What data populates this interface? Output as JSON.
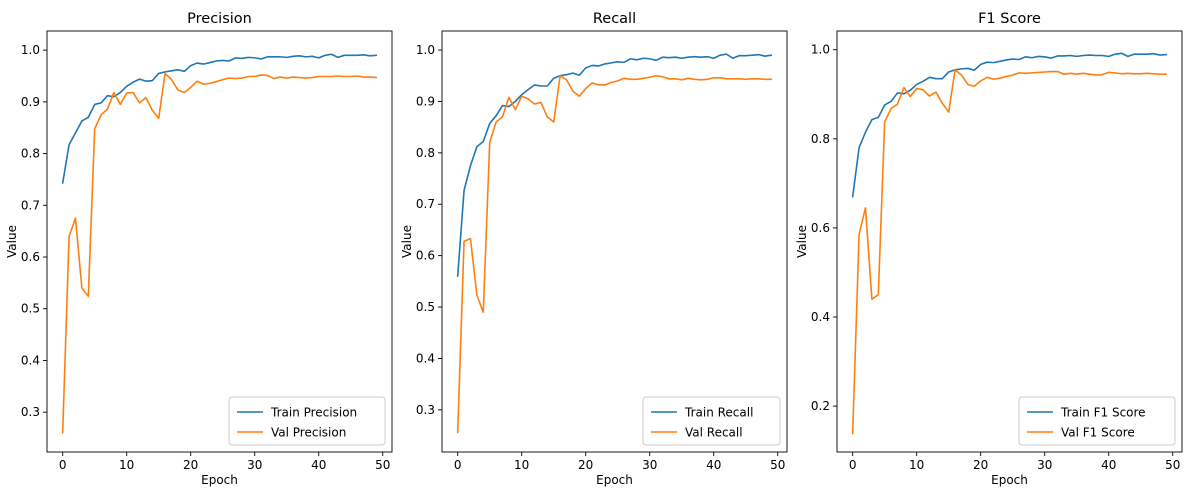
{
  "chart_data": [
    {
      "type": "line",
      "title": "Precision",
      "xlabel": "Epoch",
      "ylabel": "Value",
      "xlim": [
        -2.45,
        51.45
      ],
      "ylim": [
        0.223,
        1.037
      ],
      "xticks": [
        0,
        10,
        20,
        30,
        40,
        50
      ],
      "yticks": [
        0.3,
        0.4,
        0.5,
        0.6,
        0.7,
        0.8,
        0.9,
        1.0
      ],
      "ytick_labels": [
        "0.3",
        "0.4",
        "0.5",
        "0.6",
        "0.7",
        "0.8",
        "0.9",
        "1.0"
      ],
      "legend_position": "lower-right",
      "grid": false,
      "series": [
        {
          "name": "Train Precision",
          "color": "#1f77b4",
          "values": [
            0.743,
            0.817,
            0.84,
            0.863,
            0.87,
            0.895,
            0.898,
            0.912,
            0.91,
            0.918,
            0.93,
            0.938,
            0.944,
            0.94,
            0.941,
            0.955,
            0.958,
            0.96,
            0.962,
            0.959,
            0.97,
            0.975,
            0.973,
            0.976,
            0.979,
            0.98,
            0.979,
            0.985,
            0.984,
            0.986,
            0.985,
            0.983,
            0.987,
            0.987,
            0.987,
            0.986,
            0.988,
            0.989,
            0.987,
            0.988,
            0.985,
            0.99,
            0.992,
            0.986,
            0.99,
            0.99,
            0.99,
            0.991,
            0.989,
            0.99
          ]
        },
        {
          "name": "Val Precision",
          "color": "#ff7f0e",
          "values": [
            0.26,
            0.64,
            0.675,
            0.54,
            0.524,
            0.848,
            0.875,
            0.886,
            0.918,
            0.895,
            0.917,
            0.918,
            0.898,
            0.908,
            0.884,
            0.868,
            0.955,
            0.943,
            0.923,
            0.918,
            0.928,
            0.94,
            0.934,
            0.936,
            0.939,
            0.943,
            0.946,
            0.945,
            0.946,
            0.949,
            0.949,
            0.952,
            0.951,
            0.945,
            0.948,
            0.946,
            0.948,
            0.947,
            0.946,
            0.947,
            0.949,
            0.949,
            0.949,
            0.95,
            0.949,
            0.949,
            0.95,
            0.948,
            0.948,
            0.947
          ]
        }
      ]
    },
    {
      "type": "line",
      "title": "Recall",
      "xlabel": "Epoch",
      "ylabel": "Value",
      "xlim": [
        -2.45,
        51.45
      ],
      "ylim": [
        0.218,
        1.037
      ],
      "xticks": [
        0,
        10,
        20,
        30,
        40,
        50
      ],
      "yticks": [
        0.3,
        0.4,
        0.5,
        0.6,
        0.7,
        0.8,
        0.9,
        1.0
      ],
      "ytick_labels": [
        "0.3",
        "0.4",
        "0.5",
        "0.6",
        "0.7",
        "0.8",
        "0.9",
        "1.0"
      ],
      "legend_position": "lower-right",
      "grid": false,
      "series": [
        {
          "name": "Train Recall",
          "color": "#1f77b4",
          "values": [
            0.56,
            0.727,
            0.775,
            0.812,
            0.822,
            0.857,
            0.872,
            0.892,
            0.89,
            0.9,
            0.913,
            0.923,
            0.932,
            0.93,
            0.93,
            0.945,
            0.95,
            0.952,
            0.955,
            0.951,
            0.965,
            0.97,
            0.969,
            0.973,
            0.975,
            0.977,
            0.976,
            0.983,
            0.981,
            0.984,
            0.983,
            0.98,
            0.986,
            0.985,
            0.986,
            0.984,
            0.986,
            0.987,
            0.986,
            0.987,
            0.984,
            0.99,
            0.992,
            0.984,
            0.989,
            0.989,
            0.99,
            0.991,
            0.988,
            0.99
          ]
        },
        {
          "name": "Val Recall",
          "color": "#ff7f0e",
          "values": [
            0.256,
            0.628,
            0.633,
            0.523,
            0.49,
            0.82,
            0.86,
            0.87,
            0.908,
            0.884,
            0.91,
            0.905,
            0.895,
            0.898,
            0.87,
            0.86,
            0.95,
            0.942,
            0.92,
            0.91,
            0.925,
            0.936,
            0.932,
            0.932,
            0.937,
            0.94,
            0.945,
            0.943,
            0.943,
            0.945,
            0.947,
            0.95,
            0.948,
            0.944,
            0.944,
            0.942,
            0.945,
            0.943,
            0.942,
            0.943,
            0.946,
            0.946,
            0.944,
            0.944,
            0.944,
            0.943,
            0.944,
            0.944,
            0.943,
            0.943
          ]
        }
      ]
    },
    {
      "type": "line",
      "title": "F1 Score",
      "xlabel": "Epoch",
      "ylabel": "Value",
      "xlim": [
        -2.45,
        51.45
      ],
      "ylim": [
        0.097,
        1.042
      ],
      "xticks": [
        0,
        10,
        20,
        30,
        40,
        50
      ],
      "yticks": [
        0.2,
        0.4,
        0.6,
        0.8,
        1.0
      ],
      "ytick_labels": [
        "0.2",
        "0.4",
        "0.6",
        "0.8",
        "1.0"
      ],
      "legend_position": "lower-right",
      "grid": false,
      "series": [
        {
          "name": "Train F1 Score",
          "color": "#1f77b4",
          "values": [
            0.67,
            0.78,
            0.815,
            0.843,
            0.848,
            0.876,
            0.884,
            0.903,
            0.901,
            0.909,
            0.922,
            0.929,
            0.938,
            0.935,
            0.935,
            0.95,
            0.955,
            0.957,
            0.958,
            0.954,
            0.967,
            0.972,
            0.971,
            0.974,
            0.977,
            0.979,
            0.978,
            0.984,
            0.982,
            0.985,
            0.984,
            0.981,
            0.986,
            0.986,
            0.987,
            0.985,
            0.987,
            0.988,
            0.987,
            0.987,
            0.985,
            0.99,
            0.992,
            0.985,
            0.99,
            0.99,
            0.99,
            0.991,
            0.988,
            0.989
          ]
        },
        {
          "name": "Val F1 Score",
          "color": "#ff7f0e",
          "values": [
            0.138,
            0.585,
            0.645,
            0.44,
            0.45,
            0.838,
            0.868,
            0.878,
            0.915,
            0.895,
            0.913,
            0.91,
            0.896,
            0.905,
            0.88,
            0.86,
            0.955,
            0.943,
            0.922,
            0.918,
            0.93,
            0.938,
            0.934,
            0.936,
            0.94,
            0.943,
            0.948,
            0.947,
            0.948,
            0.949,
            0.95,
            0.951,
            0.951,
            0.945,
            0.947,
            0.945,
            0.947,
            0.945,
            0.943,
            0.944,
            0.949,
            0.948,
            0.946,
            0.947,
            0.946,
            0.946,
            0.947,
            0.946,
            0.945,
            0.945
          ]
        }
      ]
    }
  ]
}
